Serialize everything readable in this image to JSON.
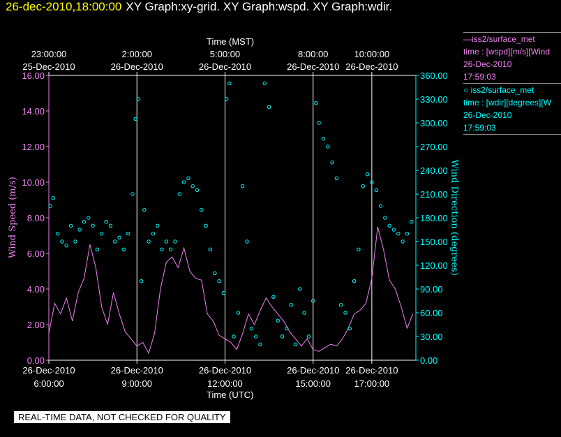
{
  "header": {
    "timestamp": "26-dec-2010,18:00:00",
    "graphs": "XY Graph:xy-grid.  XY Graph:wspd.  XY Graph:wdir."
  },
  "legend": {
    "series1": {
      "line1": "—iss2/surface_met",
      "line2": "time : [wspd][m/s][Wind",
      "line3": "26-Dec-2010",
      "line4": "17:59:03"
    },
    "series2": {
      "line1": "○ iss2/surface_met",
      "line2": "time : [wdir][degrees][W",
      "line3": "26-Dec-2010",
      "line4": "17:59:03"
    }
  },
  "footer": "REAL-TIME DATA, NOT CHECKED FOR QUALITY",
  "colors": {
    "wspd": "#ee82ee",
    "wdir": "#00ffff",
    "timestamp": "#ffff00"
  },
  "chart_data": {
    "type": "line+scatter",
    "top_axis_title": "Time (MST)",
    "bottom_axis_title": "Time (UTC)",
    "ylabel_left": "Wind Speed (m/s)",
    "ylabel_right": "Wind Direction (degrees)",
    "ylim_left": [
      0,
      16
    ],
    "ylim_right": [
      0,
      360
    ],
    "xlim_hours_utc": [
      6.0,
      18.5
    ],
    "left_ticks": [
      "0.00",
      "2.00",
      "4.00",
      "6.00",
      "8.00",
      "10.00",
      "12.00",
      "14.00",
      "16.00"
    ],
    "right_ticks": [
      "0.00",
      "30.00",
      "60.00",
      "90.00",
      "120.00",
      "150.00",
      "180.00",
      "210.00",
      "240.00",
      "270.00",
      "300.00",
      "330.00",
      "360.00"
    ],
    "bottom_ticks": [
      {
        "h": 6,
        "date": "26-Dec-2010",
        "time": "6:00:00"
      },
      {
        "h": 9,
        "date": "26-Dec-2010",
        "time": "9:00:00"
      },
      {
        "h": 12,
        "date": "26-Dec-2010",
        "time": "12:00:00"
      },
      {
        "h": 15,
        "date": "26-Dec-2010",
        "time": "15:00:00"
      },
      {
        "h": 17,
        "date": "26-Dec-2010",
        "time": "17:00:00"
      }
    ],
    "top_ticks": [
      {
        "h": 6,
        "time": "23:00:00",
        "date": "25-Dec-2010"
      },
      {
        "h": 9,
        "time": "2:00:00",
        "date": "26-Dec-2010"
      },
      {
        "h": 12,
        "time": "5:00:00",
        "date": "26-Dec-2010"
      },
      {
        "h": 15,
        "time": "8:00:00",
        "date": "26-Dec-2010"
      },
      {
        "h": 17,
        "time": "10:00:00",
        "date": "26-Dec-2010"
      }
    ],
    "grid_hours": [
      9,
      12,
      15,
      17
    ],
    "series": [
      {
        "name": "iss2/surface_met time : [wspd][m/s]",
        "axis": "left",
        "mark": "line",
        "x": [
          6.0,
          6.2,
          6.4,
          6.6,
          6.8,
          7.0,
          7.2,
          7.4,
          7.6,
          7.8,
          8.0,
          8.2,
          8.4,
          8.6,
          8.8,
          9.0,
          9.2,
          9.4,
          9.6,
          9.8,
          10.0,
          10.2,
          10.4,
          10.6,
          10.8,
          11.0,
          11.2,
          11.4,
          11.6,
          11.8,
          12.0,
          12.2,
          12.4,
          12.6,
          12.8,
          13.0,
          13.2,
          13.4,
          13.6,
          13.8,
          14.0,
          14.2,
          14.4,
          14.6,
          14.8,
          15.0,
          15.2,
          15.4,
          15.6,
          15.8,
          16.0,
          16.2,
          16.4,
          16.6,
          16.8,
          17.0,
          17.2,
          17.4,
          17.6,
          17.8,
          18.0,
          18.2,
          18.4
        ],
        "y": [
          1.5,
          3.2,
          2.6,
          3.5,
          2.2,
          3.8,
          4.6,
          6.5,
          5.2,
          3.0,
          2.0,
          3.8,
          2.6,
          1.6,
          1.2,
          0.8,
          1.0,
          0.4,
          1.5,
          4.0,
          5.5,
          5.8,
          5.2,
          6.3,
          5.0,
          4.6,
          4.5,
          2.6,
          2.2,
          1.4,
          1.2,
          1.0,
          0.6,
          1.5,
          2.6,
          2.0,
          2.8,
          3.5,
          3.0,
          2.6,
          2.2,
          1.6,
          1.2,
          0.8,
          1.2,
          0.6,
          0.5,
          0.7,
          0.9,
          0.8,
          1.2,
          1.8,
          2.6,
          2.8,
          3.2,
          4.6,
          7.5,
          6.2,
          4.5,
          4.0,
          3.0,
          1.8,
          2.6
        ]
      },
      {
        "name": "iss2/surface_met time : [wdir][degrees]",
        "axis": "right",
        "mark": "scatter",
        "x": [
          6.05,
          6.15,
          6.3,
          6.45,
          6.6,
          6.75,
          6.9,
          7.05,
          7.2,
          7.35,
          7.5,
          7.65,
          7.8,
          7.95,
          8.1,
          8.25,
          8.4,
          8.55,
          8.7,
          8.85,
          8.95,
          9.05,
          9.15,
          9.25,
          9.4,
          9.55,
          9.7,
          9.85,
          10.0,
          10.15,
          10.3,
          10.45,
          10.6,
          10.75,
          10.9,
          11.05,
          11.2,
          11.35,
          11.5,
          11.65,
          11.8,
          11.95,
          12.05,
          12.15,
          12.3,
          12.45,
          12.6,
          12.75,
          12.9,
          13.05,
          13.2,
          13.35,
          13.5,
          13.65,
          13.8,
          13.95,
          14.1,
          14.25,
          14.4,
          14.55,
          14.7,
          14.85,
          15.0,
          15.1,
          15.2,
          15.35,
          15.5,
          15.65,
          15.8,
          15.95,
          16.1,
          16.25,
          16.4,
          16.55,
          16.7,
          16.85,
          17.0,
          17.15,
          17.3,
          17.45,
          17.6,
          17.75,
          17.9,
          18.05,
          18.2,
          18.35
        ],
        "y": [
          195,
          205,
          160,
          150,
          145,
          170,
          150,
          165,
          175,
          180,
          170,
          140,
          160,
          175,
          170,
          150,
          155,
          140,
          160,
          210,
          305,
          330,
          100,
          190,
          150,
          160,
          170,
          140,
          150,
          140,
          150,
          210,
          225,
          230,
          220,
          215,
          190,
          170,
          140,
          110,
          100,
          85,
          330,
          350,
          30,
          60,
          220,
          150,
          40,
          30,
          20,
          350,
          320,
          80,
          50,
          30,
          40,
          70,
          20,
          90,
          60,
          30,
          75,
          325,
          300,
          280,
          270,
          250,
          230,
          70,
          60,
          40,
          100,
          140,
          220,
          235,
          225,
          215,
          195,
          180,
          170,
          165,
          160,
          150,
          160,
          175
        ]
      }
    ]
  }
}
